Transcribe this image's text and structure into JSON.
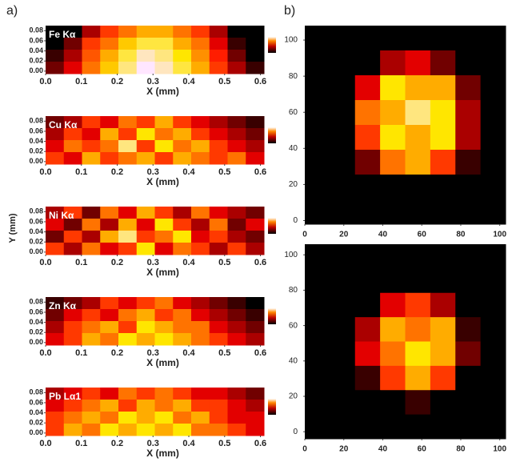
{
  "panel_labels": [
    "a)",
    "b)"
  ],
  "y_axis_label": "Y (mm)",
  "chart_data": [
    {
      "type": "heatmap",
      "label": "Fe Kα",
      "xlabel": "X (mm)",
      "xlim": [
        0,
        0.61
      ],
      "ylim": [
        -0.005,
        0.09
      ],
      "xticks": [
        {
          "value": 0,
          "label": "0.0"
        },
        0.1,
        0.2,
        0.3,
        0.4,
        0.5,
        0.6
      ],
      "yticks": [
        {
          "value": 0,
          "label": "0.00"
        },
        {
          "value": 0.02,
          "label": "0.02"
        },
        {
          "value": 0.04,
          "label": "0.04"
        },
        {
          "value": 0.06,
          "label": "0.06"
        },
        {
          "value": 0.08,
          "label": "0.08"
        }
      ],
      "values": [
        [
          0,
          0,
          0.3,
          0.5,
          0.6,
          0.7,
          0.7,
          0.6,
          0.5,
          0.3,
          0,
          0
        ],
        [
          0,
          0.2,
          0.5,
          0.6,
          0.75,
          0.85,
          0.85,
          0.7,
          0.6,
          0.4,
          0.1,
          0
        ],
        [
          0.1,
          0.3,
          0.55,
          0.7,
          0.85,
          0.95,
          0.9,
          0.8,
          0.65,
          0.45,
          0.2,
          0
        ],
        [
          0.2,
          0.4,
          0.6,
          0.75,
          0.9,
          1,
          0.95,
          0.85,
          0.7,
          0.5,
          0.3,
          0.1
        ]
      ]
    },
    {
      "type": "heatmap",
      "label": "Cu Kα",
      "xlabel": "X (mm)",
      "xlim": [
        0,
        0.61
      ],
      "ylim": [
        -0.005,
        0.09
      ],
      "xticks": [
        {
          "value": 0,
          "label": "0.0"
        },
        0.1,
        0.2,
        0.3,
        0.4,
        0.5,
        0.6
      ],
      "yticks": [
        {
          "value": 0,
          "label": "0.00"
        },
        {
          "value": 0.02,
          "label": "0.02"
        },
        {
          "value": 0.04,
          "label": "0.04"
        },
        {
          "value": 0.06,
          "label": "0.06"
        },
        {
          "value": 0.08,
          "label": "0.08"
        }
      ],
      "values": [
        [
          0.2,
          0.3,
          0.5,
          0.4,
          0.6,
          0.5,
          0.7,
          0.5,
          0.4,
          0.3,
          0.2,
          0.1
        ],
        [
          0.3,
          0.5,
          0.4,
          0.7,
          0.5,
          0.8,
          0.6,
          0.7,
          0.5,
          0.4,
          0.3,
          0.2
        ],
        [
          0.4,
          0.6,
          0.5,
          0.6,
          0.9,
          0.5,
          0.8,
          0.6,
          0.7,
          0.5,
          0.4,
          0.3
        ],
        [
          0.5,
          0.4,
          0.7,
          0.5,
          0.6,
          0.7,
          0.5,
          0.7,
          0.6,
          0.5,
          0.6,
          0.4
        ]
      ]
    },
    {
      "type": "heatmap",
      "label": "Ni Kα",
      "xlabel": "X (mm)",
      "xlim": [
        0,
        0.61
      ],
      "ylim": [
        -0.005,
        0.09
      ],
      "xticks": [
        {
          "value": 0,
          "label": "0.0"
        },
        0.1,
        0.2,
        0.3,
        0.4,
        0.5,
        0.6
      ],
      "yticks": [
        {
          "value": 0,
          "label": "0.00"
        },
        {
          "value": 0.02,
          "label": "0.02"
        },
        {
          "value": 0.04,
          "label": "0.04"
        },
        {
          "value": 0.06,
          "label": "0.06"
        },
        {
          "value": 0.08,
          "label": "0.08"
        }
      ],
      "values": [
        [
          0.3,
          0.5,
          0.2,
          0.6,
          0.4,
          0.7,
          0.5,
          0.3,
          0.6,
          0.4,
          0.3,
          0.2
        ],
        [
          0.4,
          0.2,
          0.6,
          0.3,
          0.7,
          0.4,
          0.8,
          0.5,
          0.3,
          0.6,
          0.2,
          0.4
        ],
        [
          0.2,
          0.5,
          0.3,
          0.7,
          0.9,
          0.5,
          0.6,
          0.8,
          0.4,
          0.5,
          0.3,
          0.2
        ],
        [
          0.5,
          0.3,
          0.6,
          0.4,
          0.5,
          0.8,
          0.4,
          0.6,
          0.5,
          0.3,
          0.5,
          0.3
        ]
      ]
    },
    {
      "type": "heatmap",
      "label": "Zn Kα",
      "xlabel": "X (mm)",
      "xlim": [
        0,
        0.61
      ],
      "ylim": [
        -0.005,
        0.09
      ],
      "xticks": [
        {
          "value": 0,
          "label": "0.0"
        },
        0.1,
        0.2,
        0.3,
        0.4,
        0.5,
        0.6
      ],
      "yticks": [
        {
          "value": 0,
          "label": "0.00"
        },
        {
          "value": 0.02,
          "label": "0.02"
        },
        {
          "value": 0.04,
          "label": "0.04"
        },
        {
          "value": 0.06,
          "label": "0.06"
        },
        {
          "value": 0.08,
          "label": "0.08"
        }
      ],
      "values": [
        [
          0.1,
          0.2,
          0.3,
          0.5,
          0.4,
          0.5,
          0.6,
          0.4,
          0.3,
          0.2,
          0.1,
          0
        ],
        [
          0.2,
          0.4,
          0.5,
          0.4,
          0.6,
          0.7,
          0.5,
          0.6,
          0.4,
          0.3,
          0.2,
          0.1
        ],
        [
          0.3,
          0.5,
          0.6,
          0.7,
          0.5,
          0.8,
          0.7,
          0.6,
          0.6,
          0.4,
          0.3,
          0.2
        ],
        [
          0.4,
          0.5,
          0.7,
          0.6,
          0.8,
          0.7,
          0.8,
          0.7,
          0.6,
          0.5,
          0.4,
          0.3
        ]
      ]
    },
    {
      "type": "heatmap",
      "label": "Pb Lα1",
      "xlabel": "X (mm)",
      "xlim": [
        0,
        0.61
      ],
      "ylim": [
        -0.005,
        0.09
      ],
      "xticks": [
        {
          "value": 0,
          "label": "0.0"
        },
        0.1,
        0.2,
        0.3,
        0.4,
        0.5,
        0.6
      ],
      "yticks": [
        {
          "value": 0,
          "label": "0.00"
        },
        {
          "value": 0.02,
          "label": "0.02"
        },
        {
          "value": 0.04,
          "label": "0.04"
        },
        {
          "value": 0.06,
          "label": "0.06"
        },
        {
          "value": 0.08,
          "label": "0.08"
        }
      ],
      "values": [
        [
          0.3,
          0.4,
          0.5,
          0.4,
          0.6,
          0.5,
          0.6,
          0.5,
          0.4,
          0.4,
          0.3,
          0.2
        ],
        [
          0.4,
          0.5,
          0.6,
          0.7,
          0.5,
          0.7,
          0.6,
          0.7,
          0.5,
          0.5,
          0.4,
          0.3
        ],
        [
          0.5,
          0.6,
          0.7,
          0.6,
          0.8,
          0.7,
          0.8,
          0.6,
          0.7,
          0.5,
          0.4,
          0.4
        ],
        [
          0.5,
          0.7,
          0.6,
          0.8,
          0.7,
          0.8,
          0.7,
          0.8,
          0.6,
          0.6,
          0.5,
          0.4
        ]
      ]
    },
    {
      "type": "heatmap",
      "xlim": [
        0,
        103
      ],
      "ylim": [
        -2,
        108
      ],
      "xticks": [
        0,
        20,
        40,
        60,
        80,
        100
      ],
      "yticks": [
        0,
        20,
        40,
        60,
        80,
        100
      ],
      "values": [
        [
          0,
          0,
          0,
          0,
          0,
          0,
          0,
          0
        ],
        [
          0,
          0,
          0,
          0.3,
          0.4,
          0.2,
          0,
          0
        ],
        [
          0,
          0,
          0.4,
          0.8,
          0.7,
          0.7,
          0.2,
          0
        ],
        [
          0,
          0,
          0.6,
          0.7,
          0.9,
          0.8,
          0.3,
          0
        ],
        [
          0,
          0,
          0.5,
          0.8,
          0.7,
          0.8,
          0.3,
          0
        ],
        [
          0,
          0,
          0.2,
          0.6,
          0.7,
          0.5,
          0.1,
          0
        ],
        [
          0,
          0,
          0,
          0,
          0,
          0,
          0,
          0
        ],
        [
          0,
          0,
          0,
          0,
          0,
          0,
          0,
          0
        ]
      ]
    },
    {
      "type": "heatmap",
      "xlim": [
        0,
        103
      ],
      "ylim": [
        -4,
        106
      ],
      "xticks": [
        0,
        20,
        40,
        60,
        80,
        100
      ],
      "yticks": [
        0,
        20,
        40,
        60,
        80,
        100
      ],
      "values": [
        [
          0,
          0,
          0,
          0,
          0,
          0,
          0,
          0
        ],
        [
          0,
          0,
          0,
          0,
          0,
          0,
          0,
          0
        ],
        [
          0,
          0,
          0,
          0.4,
          0.5,
          0.3,
          0,
          0
        ],
        [
          0,
          0,
          0.3,
          0.7,
          0.6,
          0.7,
          0.1,
          0
        ],
        [
          0,
          0,
          0.4,
          0.6,
          0.8,
          0.7,
          0.2,
          0
        ],
        [
          0,
          0,
          0.1,
          0.5,
          0.7,
          0.5,
          0,
          0
        ],
        [
          0,
          0,
          0,
          0,
          0.1,
          0,
          0,
          0
        ],
        [
          0,
          0,
          0,
          0,
          0,
          0,
          0,
          0
        ]
      ]
    }
  ]
}
